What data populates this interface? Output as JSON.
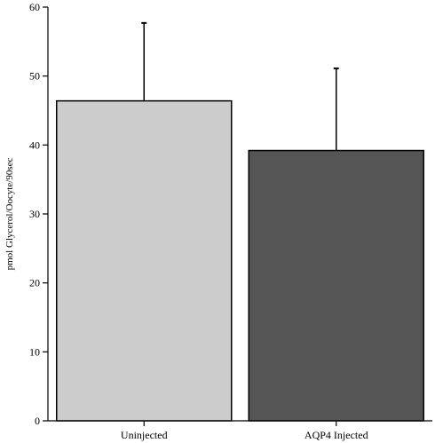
{
  "chart_data": {
    "type": "bar",
    "title": "",
    "xlabel": "",
    "ylabel": "pmol Glycerol/Oocyte/90sec",
    "categories": [
      "Uninjected",
      "AQP4 Injected"
    ],
    "values": [
      46.4,
      39.2
    ],
    "error_plus": [
      11.3,
      11.9
    ],
    "colors": [
      "#cccccc",
      "#555555"
    ],
    "edge_color": "#000000",
    "ylim": [
      0,
      60
    ],
    "yticks": [
      0,
      10,
      20,
      30,
      40,
      50,
      60
    ],
    "grid": false,
    "legend": "none"
  }
}
